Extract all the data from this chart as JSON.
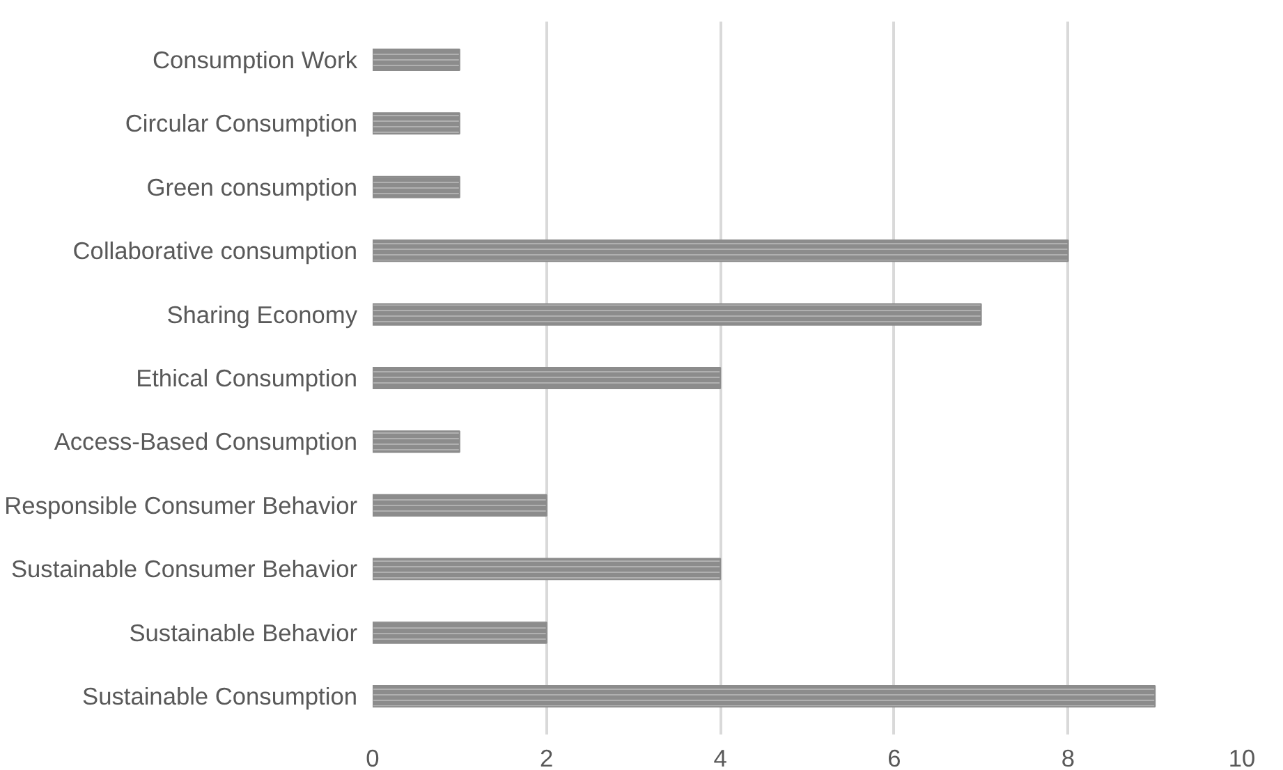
{
  "chart_data": {
    "type": "bar",
    "orientation": "horizontal",
    "categories": [
      "Consumption Work",
      "Circular Consumption",
      "Green consumption",
      "Collaborative consumption",
      "Sharing Economy",
      "Ethical Consumption",
      "Access-Based Consumption",
      "Responsible Consumer Behavior",
      "Sustainable Consumer Behavior",
      "Sustainable Behavior",
      "Sustainable Consumption"
    ],
    "values": [
      1,
      1,
      1,
      8,
      7,
      4,
      1,
      2,
      4,
      2,
      9
    ],
    "color": "#8c8c8c",
    "xlim": [
      0,
      10
    ],
    "xticks": [
      0,
      2,
      4,
      6,
      8,
      10
    ],
    "grid": "x"
  }
}
